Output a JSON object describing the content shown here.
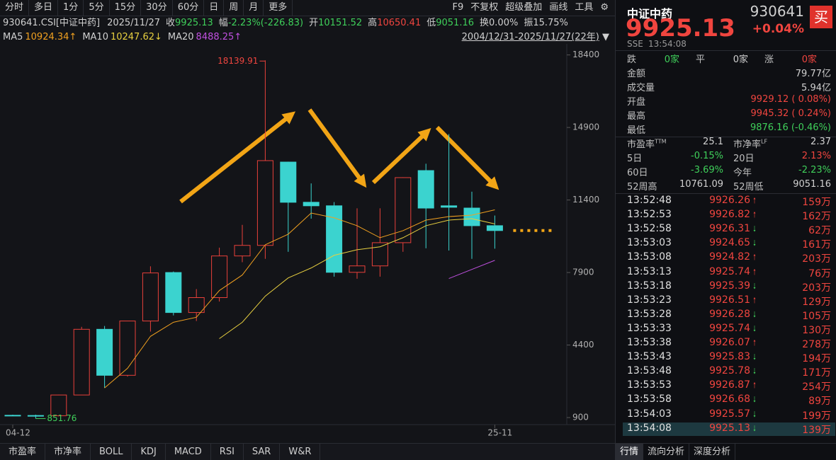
{
  "toolbar": {
    "left": [
      "分时",
      "多日",
      "1分",
      "5分",
      "15分",
      "30分",
      "60分",
      "日",
      "周",
      "月",
      "更多"
    ],
    "right": [
      "F9",
      "不复权",
      "超级叠加",
      "画线",
      "工具"
    ]
  },
  "info": {
    "code": "930641.CSI[中证中药]",
    "date": "2025/11/27",
    "fields": [
      {
        "label": "收",
        "value": "9925.13",
        "color": "#3fcf5a"
      },
      {
        "label": "幅",
        "value": "-2.23%(-226.83)",
        "color": "#3fcf5a"
      },
      {
        "label": "开",
        "value": "10151.52",
        "color": "#3fcf5a"
      },
      {
        "label": "高",
        "value": "10650.41",
        "color": "#f0453f"
      },
      {
        "label": "低",
        "value": "9051.16",
        "color": "#3fcf5a"
      },
      {
        "label": "换",
        "value": "0.00%",
        "color": "#d0d0d0"
      },
      {
        "label": "振",
        "value": "15.75%",
        "color": "#d0d0d0"
      }
    ]
  },
  "chart_data": {
    "type": "candlestick",
    "range_label": "2004/12/31-2025/11/27(22年)",
    "categories": [
      "04-12",
      null,
      null,
      null,
      null,
      null,
      null,
      null,
      null,
      null,
      null,
      null,
      null,
      null,
      null,
      null,
      null,
      null,
      null,
      null,
      null,
      "25-11"
    ],
    "open": [
      1010,
      1000,
      990,
      1990,
      5160,
      2940,
      5560,
      7900,
      5970,
      6690,
      8700,
      9210,
      13230,
      11290,
      11120,
      7910,
      8220,
      9340,
      12820,
      11120,
      11010,
      10160
    ],
    "high": [
      1040,
      1040,
      2000,
      5280,
      5320,
      5560,
      8200,
      7950,
      7100,
      9100,
      10200,
      18139.91,
      13250,
      12200,
      11300,
      11000,
      11000,
      12500,
      13150,
      14580,
      11800,
      10650.41
    ],
    "low": [
      980,
      851.76,
      960,
      1980,
      2330,
      2880,
      5050,
      5830,
      5560,
      6500,
      8400,
      8560,
      8900,
      10500,
      7700,
      7600,
      7700,
      8900,
      9070,
      8960,
      8560,
      9051.16
    ],
    "close": [
      1000,
      990,
      1990,
      5160,
      2940,
      5560,
      7880,
      5970,
      6690,
      8700,
      9210,
      13300,
      11290,
      11120,
      7910,
      8220,
      9340,
      12480,
      11010,
      11050,
      10160,
      9925.13
    ],
    "up_color": "#e8403a",
    "down_color": "#3bd3cf",
    "label_extremes": true,
    "series": [
      {
        "name": "MA5",
        "color": "#f0a020",
        "legend_label": "10924.34↑",
        "values": [
          null,
          null,
          null,
          null,
          2330,
          3280,
          4820,
          5500,
          5740,
          7030,
          7780,
          9240,
          9750,
          10770,
          10540,
          10160,
          9580,
          9920,
          10430,
          10600,
          10670,
          10924.34
        ]
      },
      {
        "name": "MA10",
        "color": "#e8d040",
        "legend_label": "10247.62↓",
        "values": [
          null,
          null,
          null,
          null,
          null,
          null,
          null,
          null,
          null,
          4710,
          5500,
          6760,
          7640,
          8120,
          8730,
          9000,
          9140,
          9580,
          10160,
          10430,
          10500,
          10247.62
        ]
      },
      {
        "name": "MA20",
        "color": "#c050e0",
        "legend_label": "8488.25↑",
        "values": [
          null,
          null,
          null,
          null,
          null,
          null,
          null,
          null,
          null,
          null,
          null,
          null,
          null,
          null,
          null,
          null,
          null,
          null,
          null,
          7610,
          8050,
          8488.25
        ]
      }
    ],
    "ylim": [
      560,
      18900
    ],
    "yticks": [
      900,
      4400,
      7900,
      11400,
      14900,
      18400
    ]
  },
  "bottom_tabs": [
    "市盈率",
    "市净率",
    "BOLL",
    "KDJ",
    "MACD",
    "RSI",
    "SAR",
    "W&R"
  ],
  "quote": {
    "name": "中证中药",
    "code": "930641",
    "price": "9925.13",
    "change": "+0.04%",
    "button": "买",
    "exchange": "SSE",
    "time": "13:54:08"
  },
  "breadth": [
    {
      "label": "跌",
      "value": "0家",
      "color": "#3fcf5a"
    },
    {
      "label": "平",
      "value": "0家",
      "color": "#d0d0d0"
    },
    {
      "label": "涨",
      "value": "0家",
      "color": "#f0453f"
    }
  ],
  "stats": [
    {
      "label": "金额",
      "value": "79.77亿",
      "color": "#d0d0d0"
    },
    {
      "label": "成交量",
      "value": "5.94亿",
      "color": "#d0d0d0"
    },
    {
      "label": "开盘",
      "value": "9929.12 ( 0.08%)",
      "color": "#f0453f"
    },
    {
      "label": "最高",
      "value": "9945.32 ( 0.24%)",
      "color": "#f0453f"
    },
    {
      "label": "最低",
      "value": "9876.16 (-0.46%)",
      "color": "#3fcf5a"
    }
  ],
  "ratios": [
    [
      {
        "label": "市盈率",
        "sup": "TTM",
        "value": "25.1",
        "color": "#d0d0d0"
      },
      {
        "label": "市净率",
        "sup": "LF",
        "value": "2.37",
        "color": "#d0d0d0"
      }
    ],
    [
      {
        "label": "5日",
        "value": "-0.15%",
        "color": "#3fcf5a"
      },
      {
        "label": "20日",
        "value": "2.13%",
        "color": "#f0453f"
      }
    ],
    [
      {
        "label": "60日",
        "value": "-3.69%",
        "color": "#3fcf5a"
      },
      {
        "label": "今年",
        "value": "-2.23%",
        "color": "#3fcf5a"
      }
    ],
    [
      {
        "label": "52周高",
        "value": "10761.09",
        "color": "#d0d0d0"
      },
      {
        "label": "52周低",
        "value": "9051.16",
        "color": "#d0d0d0"
      }
    ]
  ],
  "ticks": [
    {
      "time": "13:52:48",
      "price": "9926.26",
      "dir": "up",
      "volume": "159万"
    },
    {
      "time": "13:52:53",
      "price": "9926.82",
      "dir": "up",
      "volume": "162万"
    },
    {
      "time": "13:52:58",
      "price": "9926.31",
      "dir": "down",
      "volume": "62万"
    },
    {
      "time": "13:53:03",
      "price": "9924.65",
      "dir": "down",
      "volume": "161万"
    },
    {
      "time": "13:53:08",
      "price": "9924.82",
      "dir": "up",
      "volume": "203万"
    },
    {
      "time": "13:53:13",
      "price": "9925.74",
      "dir": "up",
      "volume": "76万"
    },
    {
      "time": "13:53:18",
      "price": "9925.39",
      "dir": "down",
      "volume": "203万"
    },
    {
      "time": "13:53:23",
      "price": "9926.51",
      "dir": "up",
      "volume": "129万"
    },
    {
      "time": "13:53:28",
      "price": "9926.28",
      "dir": "down",
      "volume": "105万"
    },
    {
      "time": "13:53:33",
      "price": "9925.74",
      "dir": "down",
      "volume": "130万"
    },
    {
      "time": "13:53:38",
      "price": "9926.07",
      "dir": "up",
      "volume": "278万"
    },
    {
      "time": "13:53:43",
      "price": "9925.83",
      "dir": "down",
      "volume": "194万"
    },
    {
      "time": "13:53:48",
      "price": "9925.78",
      "dir": "down",
      "volume": "171万"
    },
    {
      "time": "13:53:53",
      "price": "9926.87",
      "dir": "up",
      "volume": "254万"
    },
    {
      "time": "13:53:58",
      "price": "9926.68",
      "dir": "down",
      "volume": "89万"
    },
    {
      "time": "13:54:03",
      "price": "9925.57",
      "dir": "down",
      "volume": "199万"
    },
    {
      "time": "13:54:08",
      "price": "9925.13",
      "dir": "down",
      "volume": "139万"
    }
  ],
  "side_tabs": [
    "行情",
    "流向分析",
    "深度分析"
  ]
}
